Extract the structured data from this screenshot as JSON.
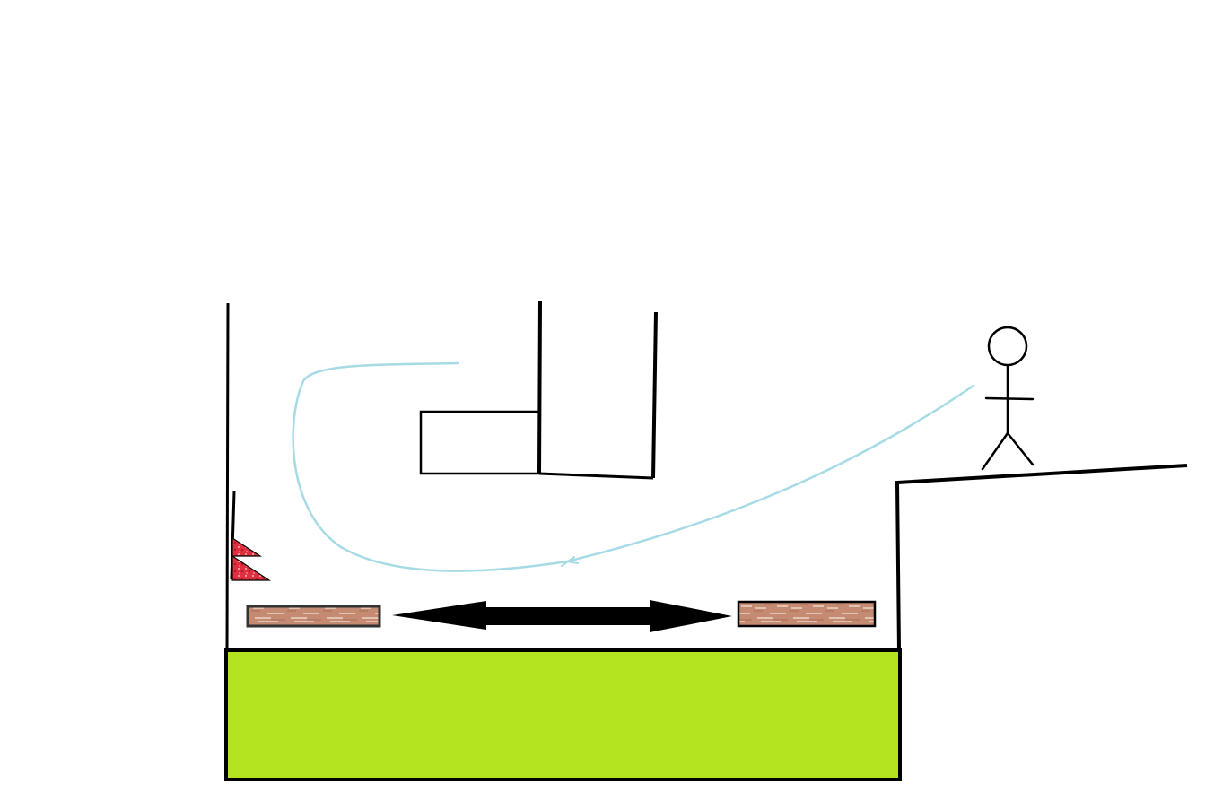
{
  "canvas": {
    "background": "#ffffff"
  },
  "colors": {
    "outline": "#000000",
    "trajectory": "#a6dbe6",
    "ground_fill": "#b3e41f",
    "plank_fill": "#c48a72",
    "plank_highlight": "#e9d2c6",
    "spike_fill": "#e0303f"
  },
  "elements": {
    "character": {
      "icon": "stick-figure-icon"
    },
    "spikes": {
      "icon": "spike-triangles-icon",
      "count": 2
    },
    "planks": {
      "icon": "wooden-plank-icon",
      "count": 2
    },
    "motion_indicator": {
      "icon": "double-headed-arrow-icon"
    },
    "trajectory": {
      "icon": "curved-path-icon"
    }
  }
}
